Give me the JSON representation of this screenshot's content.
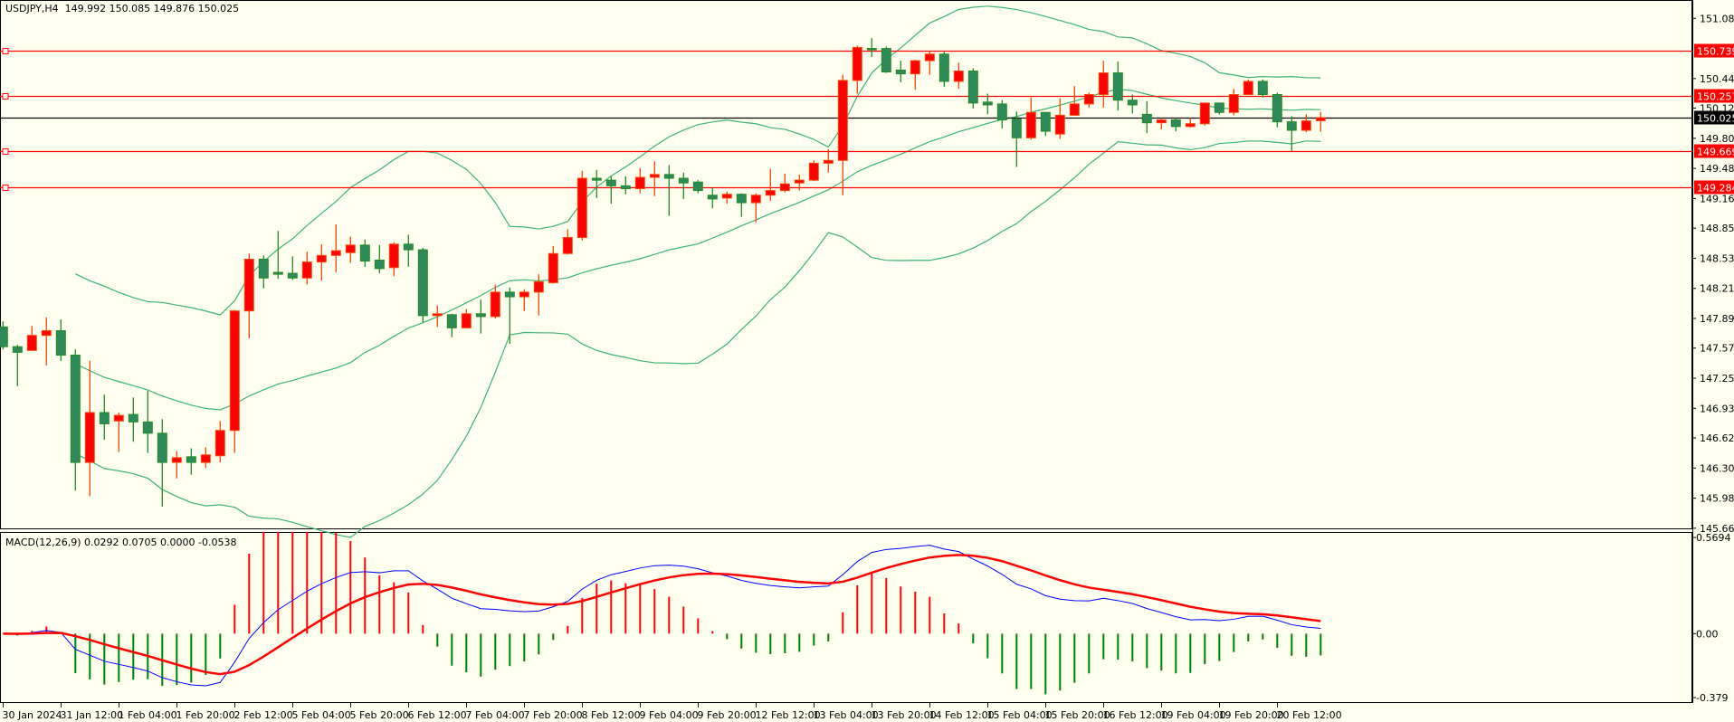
{
  "header": {
    "symbol": "USDJPY,H4",
    "ohlc": "149.992 150.085 149.876 150.025"
  },
  "macd_header": {
    "label": "MACD(12,26,9) 0.0292 0.0705 0.0000 -0.0538"
  },
  "colors": {
    "background": "#fffff0",
    "bull": "#ff0000",
    "bull_border": "#ff4500",
    "bear": "#2e8b57",
    "bear_border": "#228b22",
    "bands": "#3cb371",
    "level_line": "#ff0000",
    "macd_line": "#0000ff",
    "signal_line": "#ff0000"
  },
  "chart_data": [
    {
      "type": "candlestick",
      "title": "USDJPY,H4",
      "ylim": [
        145.649,
        151.275
      ],
      "y_ticks": [
        "151.080",
        "150.440",
        "150.125",
        "149.805",
        "149.485",
        "149.165",
        "148.850",
        "148.530",
        "148.210",
        "147.890",
        "147.575",
        "147.255",
        "146.935",
        "146.620",
        "146.300",
        "145.980",
        "145.660"
      ],
      "x_labels": [
        {
          "bar": 0,
          "label": "30 Jan 2024"
        },
        {
          "bar": 4,
          "label": "31 Jan 12:00"
        },
        {
          "bar": 8,
          "label": "1 Feb 04:00"
        },
        {
          "bar": 12,
          "label": "1 Feb 20:00"
        },
        {
          "bar": 16,
          "label": "2 Feb 12:00"
        },
        {
          "bar": 20,
          "label": "5 Feb 04:00"
        },
        {
          "bar": 24,
          "label": "5 Feb 20:00"
        },
        {
          "bar": 28,
          "label": "6 Feb 12:00"
        },
        {
          "bar": 32,
          "label": "7 Feb 04:00"
        },
        {
          "bar": 36,
          "label": "7 Feb 20:00"
        },
        {
          "bar": 40,
          "label": "8 Feb 12:00"
        },
        {
          "bar": 44,
          "label": "9 Feb 04:00"
        },
        {
          "bar": 48,
          "label": "9 Feb 20:00"
        },
        {
          "bar": 52,
          "label": "12 Feb 12:00"
        },
        {
          "bar": 56,
          "label": "13 Feb 04:00"
        },
        {
          "bar": 60,
          "label": "13 Feb 20:00"
        },
        {
          "bar": 64,
          "label": "14 Feb 12:00"
        },
        {
          "bar": 68,
          "label": "15 Feb 04:00"
        },
        {
          "bar": 72,
          "label": "15 Feb 20:00"
        },
        {
          "bar": 76,
          "label": "16 Feb 12:00"
        },
        {
          "bar": 80,
          "label": "19 Feb 04:00"
        },
        {
          "bar": 84,
          "label": "19 Feb 20:00"
        },
        {
          "bar": 88,
          "label": "20 Feb 12:00"
        }
      ],
      "levels": [
        {
          "price": 150.739,
          "label": "150.739"
        },
        {
          "price": 150.257,
          "label": "150.257"
        },
        {
          "price": 149.669,
          "label": "149.669"
        },
        {
          "price": 149.284,
          "label": "149.284"
        }
      ],
      "current_price": {
        "price": 150.025,
        "label": "150.025"
      },
      "indicator": "Bollinger Bands (20, 2)",
      "ohlc": [
        [
          147.8,
          147.86,
          147.56,
          147.59
        ],
        [
          147.59,
          147.61,
          147.17,
          147.53
        ],
        [
          147.55,
          147.81,
          147.55,
          147.71
        ],
        [
          147.71,
          147.9,
          147.39,
          147.76
        ],
        [
          147.76,
          147.88,
          147.44,
          147.5
        ],
        [
          147.5,
          147.56,
          146.06,
          146.36
        ],
        [
          146.36,
          147.44,
          146.0,
          146.89
        ],
        [
          146.89,
          147.08,
          146.6,
          146.77
        ],
        [
          146.8,
          146.89,
          146.47,
          146.86
        ],
        [
          146.87,
          147.05,
          146.58,
          146.79
        ],
        [
          146.79,
          147.12,
          146.46,
          146.67
        ],
        [
          146.67,
          146.82,
          145.89,
          146.36
        ],
        [
          146.36,
          146.48,
          146.19,
          146.41
        ],
        [
          146.42,
          146.51,
          146.23,
          146.36
        ],
        [
          146.36,
          146.52,
          146.3,
          146.44
        ],
        [
          146.43,
          146.8,
          146.36,
          146.7
        ],
        [
          146.7,
          147.98,
          146.46,
          147.97
        ],
        [
          147.97,
          148.58,
          147.68,
          148.52
        ],
        [
          148.52,
          148.56,
          148.21,
          148.32
        ],
        [
          148.38,
          148.82,
          148.31,
          148.36
        ],
        [
          148.37,
          148.55,
          148.3,
          148.32
        ],
        [
          148.32,
          148.6,
          148.25,
          148.49
        ],
        [
          148.49,
          148.68,
          148.29,
          148.56
        ],
        [
          148.56,
          148.89,
          148.38,
          148.61
        ],
        [
          148.59,
          148.76,
          148.48,
          148.67
        ],
        [
          148.67,
          148.73,
          148.44,
          148.5
        ],
        [
          148.51,
          148.67,
          148.37,
          148.42
        ],
        [
          148.43,
          148.7,
          148.34,
          148.68
        ],
        [
          148.68,
          148.78,
          148.44,
          148.62
        ],
        [
          148.62,
          148.64,
          147.85,
          147.92
        ],
        [
          147.92,
          148.03,
          147.8,
          147.94
        ],
        [
          147.93,
          147.94,
          147.69,
          147.79
        ],
        [
          147.79,
          147.99,
          147.79,
          147.94
        ],
        [
          147.94,
          148.09,
          147.73,
          147.91
        ],
        [
          147.91,
          148.25,
          147.89,
          148.17
        ],
        [
          148.17,
          148.22,
          147.62,
          148.12
        ],
        [
          148.12,
          148.2,
          147.97,
          148.17
        ],
        [
          148.17,
          148.36,
          147.92,
          148.28
        ],
        [
          148.27,
          148.66,
          148.26,
          148.58
        ],
        [
          148.58,
          148.84,
          148.57,
          148.75
        ],
        [
          148.75,
          149.46,
          148.72,
          149.38
        ],
        [
          149.38,
          149.47,
          149.17,
          149.36
        ],
        [
          149.36,
          149.4,
          149.11,
          149.3
        ],
        [
          149.3,
          149.4,
          149.21,
          149.27
        ],
        [
          149.27,
          149.49,
          149.22,
          149.39
        ],
        [
          149.39,
          149.56,
          149.19,
          149.42
        ],
        [
          149.42,
          149.52,
          148.98,
          149.38
        ],
        [
          149.38,
          149.44,
          149.16,
          149.33
        ],
        [
          149.34,
          149.36,
          149.22,
          149.25
        ],
        [
          149.2,
          149.28,
          149.06,
          149.16
        ],
        [
          149.17,
          149.24,
          149.11,
          149.21
        ],
        [
          149.21,
          149.22,
          148.97,
          149.12
        ],
        [
          149.12,
          149.22,
          148.91,
          149.2
        ],
        [
          149.2,
          149.48,
          149.14,
          149.25
        ],
        [
          149.25,
          149.43,
          149.23,
          149.32
        ],
        [
          149.33,
          149.42,
          149.25,
          149.36
        ],
        [
          149.36,
          149.57,
          149.35,
          149.54
        ],
        [
          149.54,
          149.69,
          149.44,
          149.57
        ],
        [
          149.57,
          150.48,
          149.2,
          150.42
        ],
        [
          150.42,
          150.79,
          150.28,
          150.77
        ],
        [
          150.76,
          150.87,
          150.67,
          150.75
        ],
        [
          150.76,
          150.78,
          150.5,
          150.51
        ],
        [
          150.53,
          150.63,
          150.4,
          150.49
        ],
        [
          150.49,
          150.64,
          150.32,
          150.63
        ],
        [
          150.63,
          150.73,
          150.48,
          150.7
        ],
        [
          150.7,
          150.73,
          150.35,
          150.41
        ],
        [
          150.41,
          150.61,
          150.33,
          150.52
        ],
        [
          150.52,
          150.55,
          150.12,
          150.18
        ],
        [
          150.19,
          150.28,
          150.06,
          150.16
        ],
        [
          150.17,
          150.21,
          149.91,
          150.0
        ],
        [
          150.01,
          150.09,
          149.5,
          149.81
        ],
        [
          149.81,
          150.24,
          149.79,
          150.08
        ],
        [
          150.08,
          150.08,
          149.83,
          149.88
        ],
        [
          149.85,
          150.23,
          149.8,
          150.05
        ],
        [
          150.05,
          150.36,
          150.05,
          150.17
        ],
        [
          150.17,
          150.29,
          150.13,
          150.27
        ],
        [
          150.27,
          150.63,
          150.13,
          150.5
        ],
        [
          150.5,
          150.62,
          150.1,
          150.21
        ],
        [
          150.21,
          150.27,
          150.07,
          150.16
        ],
        [
          150.06,
          150.2,
          149.86,
          149.97
        ],
        [
          149.97,
          150.02,
          149.9,
          150.0
        ],
        [
          150.0,
          150.02,
          149.88,
          149.93
        ],
        [
          149.93,
          150.02,
          149.92,
          149.96
        ],
        [
          149.96,
          150.18,
          149.94,
          150.18
        ],
        [
          150.18,
          150.18,
          150.06,
          150.08
        ],
        [
          150.08,
          150.33,
          150.05,
          150.27
        ],
        [
          150.27,
          150.43,
          150.27,
          150.41
        ],
        [
          150.41,
          150.43,
          150.24,
          150.27
        ],
        [
          150.27,
          150.29,
          149.92,
          149.98
        ],
        [
          149.98,
          150.04,
          149.67,
          149.89
        ],
        [
          149.89,
          150.06,
          149.87,
          149.99
        ],
        [
          149.992,
          150.085,
          149.876,
          150.025
        ]
      ]
    },
    {
      "type": "line",
      "title": "MACD(12,26,9)",
      "ylim": [
        -0.411,
        0.602
      ],
      "y_ticks": [
        "0.5694",
        "0.00",
        "-0.379"
      ],
      "y_tick_values": [
        0.5694,
        0,
        -0.379
      ],
      "series": [
        {
          "name": "MACD",
          "source": "close",
          "fast": 12,
          "slow": 26
        },
        {
          "name": "Signal",
          "period": 9
        },
        {
          "name": "Histogram"
        }
      ]
    }
  ]
}
